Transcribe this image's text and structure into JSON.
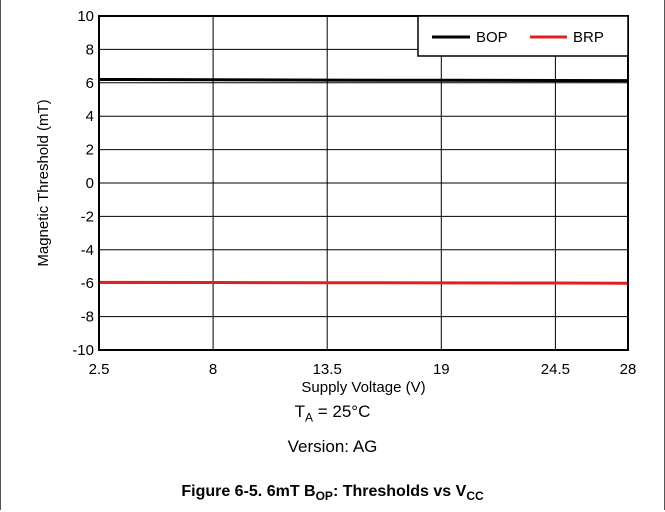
{
  "chart_data": {
    "type": "line",
    "title": "",
    "xlabel": "Supply Voltage (V)",
    "ylabel": "Magnetic Threshold (mT)",
    "xlim": [
      2.5,
      28
    ],
    "ylim": [
      -10,
      10
    ],
    "xticks": [
      2.5,
      8,
      13.5,
      19,
      24.5,
      28
    ],
    "xtick_labels": [
      "2.5",
      "8",
      "13.5",
      "19",
      "24.5",
      "28"
    ],
    "yticks": [
      -10,
      -8,
      -6,
      -4,
      -2,
      0,
      2,
      4,
      6,
      8,
      10
    ],
    "ytick_labels": [
      "-10",
      "-8",
      "-6",
      "-4",
      "-2",
      "0",
      "2",
      "4",
      "6",
      "8",
      "10"
    ],
    "grid": true,
    "legend_position": "top-right",
    "series": [
      {
        "name": "BOP",
        "color": "#000000",
        "x": [
          2.5,
          8,
          13.5,
          19,
          24.5,
          28
        ],
        "y": [
          6.2,
          6.18,
          6.16,
          6.15,
          6.14,
          6.13
        ]
      },
      {
        "name": "BRP",
        "color": "#e02020",
        "x": [
          2.5,
          8,
          13.5,
          19,
          24.5,
          28
        ],
        "y": [
          -5.95,
          -5.96,
          -5.97,
          -5.98,
          -5.99,
          -6.0
        ]
      }
    ]
  },
  "notes": {
    "temp_prefix": "T",
    "temp_sub": "A",
    "temp_suffix": " = 25°C",
    "version": "Version: AG"
  },
  "caption": {
    "part1": "Figure 6-5. 6mT B",
    "sub1": "OP",
    "part2": ": Thresholds vs V",
    "sub2": "CC"
  }
}
